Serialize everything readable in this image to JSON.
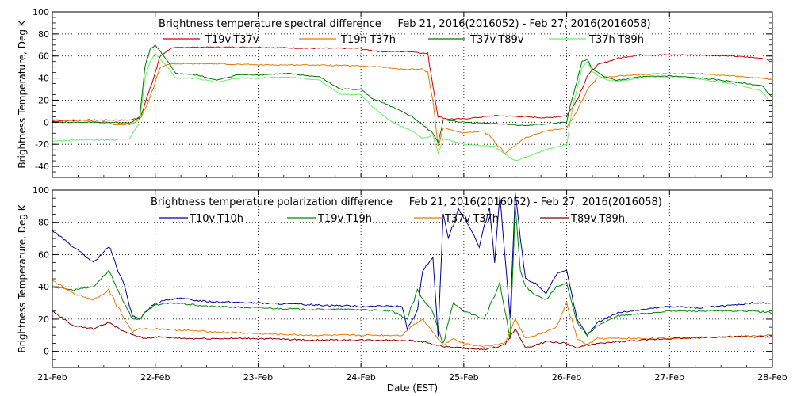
{
  "chart_data": [
    {
      "type": "line",
      "title": "Brightness temperature spectral difference     Feb 21, 2016(2016052) - Feb 27, 2016(2016058)",
      "ylabel": "Brightness Temperature, Deg K",
      "xlabel": "",
      "ylim": [
        -50,
        100
      ],
      "xlim": [
        0,
        7
      ],
      "yticks": [
        "100",
        "80",
        "60",
        "40",
        "20",
        "0",
        "-20",
        "-40"
      ],
      "xticks": [],
      "grid": "dotted",
      "legend_position": "top",
      "series": [
        {
          "name": "T19v-T37v",
          "color": "#cc0000",
          "x": [
            0,
            0.3,
            0.6,
            0.75,
            0.85,
            0.95,
            1.05,
            1.15,
            1.3,
            1.6,
            2,
            2.5,
            3,
            3.02,
            3.2,
            3.5,
            3.65,
            3.75,
            3.85,
            4.0,
            4.3,
            4.6,
            4.8,
            5.0,
            5.1,
            5.2,
            5.3,
            5.5,
            5.7,
            6.0,
            6.3,
            6.6,
            6.9,
            7.0
          ],
          "values": [
            1,
            2,
            2,
            2,
            4,
            30,
            60,
            67,
            68,
            68,
            68,
            67,
            67,
            66,
            64,
            64,
            62,
            5,
            3,
            3,
            6,
            5,
            4,
            6,
            20,
            42,
            52,
            58,
            61,
            61,
            61,
            60,
            58,
            56
          ]
        },
        {
          "name": "T19h-T37h",
          "color": "#e87800",
          "x": [
            0,
            0.3,
            0.6,
            0.75,
            0.85,
            0.95,
            1.05,
            1.15,
            1.3,
            1.6,
            2,
            2.5,
            3,
            3.2,
            3.4,
            3.6,
            3.65,
            3.7,
            3.75,
            3.8,
            4.0,
            4.2,
            4.4,
            4.6,
            4.8,
            5.0,
            5.1,
            5.2,
            5.3,
            5.5,
            5.7,
            6.0,
            6.3,
            6.6,
            6.9,
            7.0
          ],
          "values": [
            2,
            2,
            -2,
            -2,
            2,
            22,
            50,
            53,
            53,
            53,
            52,
            52,
            51,
            50,
            48,
            48,
            45,
            20,
            -22,
            -5,
            -10,
            -8,
            -28,
            -14,
            -8,
            -5,
            10,
            30,
            40,
            42,
            43,
            44,
            44,
            42,
            40,
            38
          ]
        },
        {
          "name": "T37v-T89v",
          "color": "#007700",
          "x": [
            0,
            0.3,
            0.6,
            0.75,
            0.85,
            0.9,
            0.95,
            1.0,
            1.1,
            1.2,
            1.4,
            1.6,
            1.8,
            2.0,
            2.3,
            2.6,
            2.8,
            3.0,
            3.1,
            3.3,
            3.5,
            3.7,
            3.75,
            3.8,
            4.0,
            4.3,
            4.6,
            5.0,
            5.05,
            5.15,
            5.2,
            5.25,
            5.3,
            5.4,
            5.5,
            5.7,
            6.0,
            6.3,
            6.6,
            6.9,
            7.0
          ],
          "values": [
            0,
            0,
            0,
            -1,
            5,
            50,
            66,
            70,
            58,
            44,
            43,
            38,
            43,
            43,
            44,
            41,
            30,
            30,
            22,
            14,
            5,
            -10,
            -18,
            2,
            0,
            -1,
            -3,
            0,
            20,
            55,
            57,
            48,
            45,
            40,
            38,
            41,
            42,
            40,
            37,
            33,
            22
          ]
        },
        {
          "name": "T37h-T89h",
          "color": "#66ee66",
          "x": [
            0,
            0.3,
            0.6,
            0.75,
            0.85,
            0.9,
            0.95,
            1.0,
            1.1,
            1.2,
            1.4,
            1.6,
            1.8,
            2.0,
            2.3,
            2.6,
            2.8,
            3.0,
            3.1,
            3.3,
            3.5,
            3.6,
            3.7,
            3.75,
            3.8,
            4.0,
            4.3,
            4.5,
            4.8,
            5.0,
            5.05,
            5.15,
            5.2,
            5.25,
            5.3,
            5.4,
            5.5,
            5.7,
            6.0,
            6.3,
            6.6,
            6.9,
            7.0
          ],
          "values": [
            -17,
            -16,
            -16,
            -15,
            0,
            40,
            55,
            62,
            52,
            40,
            40,
            36,
            40,
            40,
            41,
            38,
            25,
            25,
            15,
            0,
            -8,
            -15,
            -12,
            -28,
            -15,
            -20,
            -22,
            -35,
            -25,
            -20,
            10,
            50,
            55,
            46,
            42,
            38,
            37,
            40,
            41,
            39,
            35,
            28,
            15
          ]
        }
      ]
    },
    {
      "type": "line",
      "title": "Brightness temperature polarization difference     Feb 21, 2016(2016052) - Feb 27, 2016(2016058)",
      "ylabel": "Brightness Temperature, Deg K",
      "xlabel": "Date (EST)",
      "ylim": [
        -10,
        100
      ],
      "xlim": [
        0,
        7
      ],
      "yticks": [
        "100",
        "80",
        "60",
        "40",
        "20",
        "0"
      ],
      "xticks": [
        "21-Feb",
        "22-Feb",
        "23-Feb",
        "24-Feb",
        "25-Feb",
        "26-Feb",
        "27-Feb",
        "28-Feb"
      ],
      "grid": "dotted",
      "legend_position": "top",
      "series": [
        {
          "name": "T10v-T10h",
          "color": "#000099",
          "x": [
            0,
            0.2,
            0.4,
            0.55,
            0.7,
            0.78,
            0.85,
            0.9,
            1.0,
            1.2,
            1.5,
            2.0,
            2.5,
            3.0,
            3.2,
            3.4,
            3.45,
            3.55,
            3.6,
            3.7,
            3.75,
            3.8,
            3.85,
            3.95,
            4.05,
            4.15,
            4.25,
            4.3,
            4.35,
            4.45,
            4.5,
            4.55,
            4.6,
            4.7,
            4.8,
            4.9,
            5.0,
            5.05,
            5.1,
            5.2,
            5.3,
            5.5,
            6.0,
            6.3,
            6.5,
            6.8,
            7.0
          ],
          "values": [
            75,
            65,
            55,
            65,
            40,
            22,
            20,
            24,
            30,
            33,
            31,
            30,
            29,
            28,
            28,
            28,
            14,
            25,
            50,
            58,
            10,
            85,
            70,
            88,
            78,
            65,
            90,
            55,
            97,
            20,
            98,
            70,
            45,
            42,
            36,
            48,
            50,
            35,
            20,
            10,
            18,
            24,
            28,
            27,
            28,
            30,
            30
          ]
        },
        {
          "name": "T19v-T19h",
          "color": "#008800",
          "x": [
            0,
            0.2,
            0.4,
            0.55,
            0.7,
            0.78,
            0.85,
            0.9,
            1.0,
            1.2,
            1.5,
            2.0,
            2.5,
            3.0,
            3.3,
            3.45,
            3.55,
            3.6,
            3.7,
            3.8,
            3.9,
            4.0,
            4.2,
            4.35,
            4.45,
            4.5,
            4.55,
            4.6,
            4.7,
            4.8,
            4.9,
            5.0,
            5.05,
            5.1,
            5.2,
            5.3,
            5.5,
            6.0,
            6.3,
            6.5,
            6.8,
            7.0
          ],
          "values": [
            40,
            38,
            40,
            50,
            30,
            20,
            20,
            24,
            29,
            30,
            28,
            27,
            26,
            26,
            25,
            20,
            38,
            32,
            25,
            5,
            30,
            25,
            20,
            42,
            8,
            90,
            50,
            40,
            35,
            32,
            40,
            42,
            30,
            18,
            10,
            16,
            22,
            25,
            25,
            25,
            25,
            24
          ]
        },
        {
          "name": "T37v-T37h",
          "color": "#ee7700",
          "x": [
            0,
            0.2,
            0.4,
            0.55,
            0.7,
            0.78,
            0.85,
            1.0,
            1.3,
            1.6,
            2.0,
            2.5,
            3.0,
            3.4,
            3.5,
            3.6,
            3.7,
            3.8,
            3.9,
            4.0,
            4.2,
            4.4,
            4.5,
            4.6,
            4.7,
            4.8,
            4.9,
            5.0,
            5.1,
            5.2,
            5.3,
            5.6,
            6.0,
            6.5,
            7.0
          ],
          "values": [
            44,
            36,
            32,
            38,
            20,
            12,
            14,
            14,
            13,
            12,
            11,
            10,
            10,
            10,
            16,
            20,
            12,
            4,
            8,
            5,
            3,
            5,
            20,
            8,
            10,
            12,
            15,
            30,
            8,
            4,
            8,
            8,
            8,
            9,
            10
          ]
        },
        {
          "name": "T89v-T89h",
          "color": "#880000",
          "x": [
            0,
            0.2,
            0.4,
            0.55,
            0.7,
            0.8,
            0.9,
            1.0,
            1.3,
            1.6,
            2.0,
            2.5,
            3.0,
            3.4,
            3.6,
            3.8,
            4.0,
            4.2,
            4.4,
            4.5,
            4.6,
            4.8,
            5.0,
            5.1,
            5.2,
            5.5,
            6.0,
            6.5,
            7.0
          ],
          "values": [
            25,
            16,
            14,
            18,
            12,
            10,
            8,
            9,
            8,
            8,
            8,
            7,
            7,
            7,
            6,
            3,
            2,
            1,
            4,
            14,
            2,
            6,
            5,
            2,
            4,
            6,
            8,
            9,
            9
          ]
        }
      ]
    }
  ]
}
